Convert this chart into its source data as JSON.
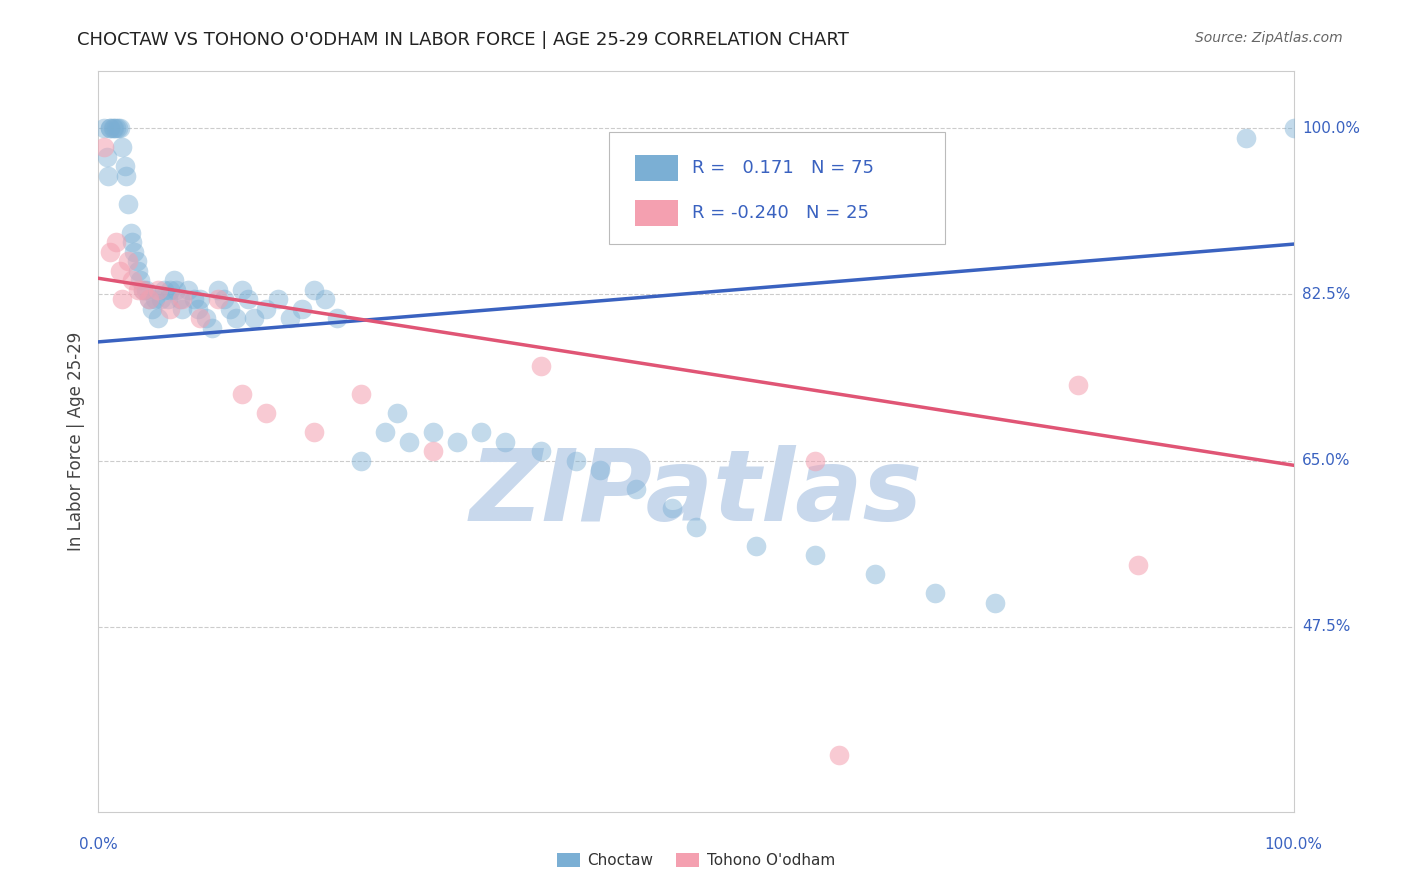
{
  "title": "CHOCTAW VS TOHONO O'ODHAM IN LABOR FORCE | AGE 25-29 CORRELATION CHART",
  "source_text": "Source: ZipAtlas.com",
  "ylabel": "In Labor Force | Age 25-29",
  "blue_label": "Choctaw",
  "pink_label": "Tohono O'odham",
  "blue_R": 0.171,
  "blue_N": 75,
  "pink_R": -0.24,
  "pink_N": 25,
  "blue_color": "#7BAFD4",
  "pink_color": "#F4A0B0",
  "blue_line_color": "#3A62C0",
  "pink_line_color": "#E05575",
  "watermark": "ZIPatlas",
  "watermark_color": "#C8D8EC",
  "xmin": 0.0,
  "xmax": 1.0,
  "ymin": 0.28,
  "ymax": 1.06,
  "yticks": [
    0.475,
    0.65,
    0.825,
    1.0
  ],
  "ytick_labels": [
    "47.5%",
    "65.0%",
    "82.5%",
    "100.0%"
  ],
  "background_color": "#FFFFFF",
  "blue_trend_x0": 0.0,
  "blue_trend_y0": 0.775,
  "blue_trend_x1": 1.0,
  "blue_trend_y1": 0.878,
  "pink_trend_x0": 0.0,
  "pink_trend_y0": 0.842,
  "pink_trend_x1": 1.0,
  "pink_trend_y1": 0.645,
  "axis_label_color": "#3A62C0",
  "tick_label_fontsize": 11,
  "title_fontsize": 13,
  "ylabel_fontsize": 12,
  "blue_x": [
    0.005,
    0.007,
    0.008,
    0.01,
    0.01,
    0.012,
    0.013,
    0.015,
    0.016,
    0.018,
    0.02,
    0.022,
    0.023,
    0.025,
    0.027,
    0.028,
    0.03,
    0.032,
    0.033,
    0.035,
    0.037,
    0.04,
    0.042,
    0.045,
    0.047,
    0.05,
    0.052,
    0.055,
    0.058,
    0.06,
    0.063,
    0.065,
    0.068,
    0.07,
    0.075,
    0.08,
    0.083,
    0.085,
    0.09,
    0.095,
    0.1,
    0.105,
    0.11,
    0.115,
    0.12,
    0.125,
    0.13,
    0.14,
    0.15,
    0.16,
    0.17,
    0.18,
    0.19,
    0.2,
    0.22,
    0.24,
    0.25,
    0.26,
    0.28,
    0.3,
    0.32,
    0.34,
    0.37,
    0.4,
    0.42,
    0.45,
    0.48,
    0.5,
    0.55,
    0.6,
    0.65,
    0.7,
    0.75,
    0.96,
    1.0
  ],
  "blue_y": [
    1.0,
    0.97,
    0.95,
    1.0,
    1.0,
    1.0,
    1.0,
    1.0,
    1.0,
    1.0,
    0.98,
    0.96,
    0.95,
    0.92,
    0.89,
    0.88,
    0.87,
    0.86,
    0.85,
    0.84,
    0.83,
    0.83,
    0.82,
    0.81,
    0.82,
    0.8,
    0.82,
    0.83,
    0.82,
    0.83,
    0.84,
    0.83,
    0.82,
    0.81,
    0.83,
    0.82,
    0.81,
    0.82,
    0.8,
    0.79,
    0.83,
    0.82,
    0.81,
    0.8,
    0.83,
    0.82,
    0.8,
    0.81,
    0.82,
    0.8,
    0.81,
    0.83,
    0.82,
    0.8,
    0.65,
    0.68,
    0.7,
    0.67,
    0.68,
    0.67,
    0.68,
    0.67,
    0.66,
    0.65,
    0.64,
    0.62,
    0.6,
    0.58,
    0.56,
    0.55,
    0.53,
    0.51,
    0.5,
    0.99,
    1.0
  ],
  "pink_x": [
    0.005,
    0.01,
    0.015,
    0.018,
    0.02,
    0.025,
    0.028,
    0.033,
    0.037,
    0.042,
    0.05,
    0.06,
    0.07,
    0.085,
    0.1,
    0.12,
    0.14,
    0.18,
    0.22,
    0.28,
    0.37,
    0.6,
    0.82,
    0.87,
    0.62
  ],
  "pink_y": [
    0.98,
    0.87,
    0.88,
    0.85,
    0.82,
    0.86,
    0.84,
    0.83,
    0.83,
    0.82,
    0.83,
    0.81,
    0.82,
    0.8,
    0.82,
    0.72,
    0.7,
    0.68,
    0.72,
    0.66,
    0.75,
    0.65,
    0.73,
    0.54,
    0.34
  ]
}
